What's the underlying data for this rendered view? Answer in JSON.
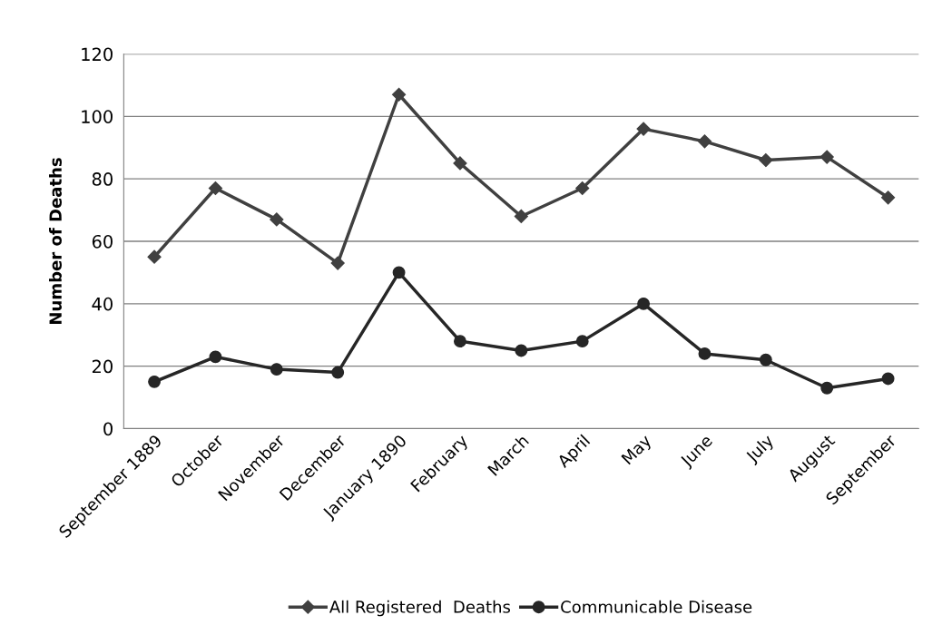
{
  "chart_data": {
    "type": "line",
    "ylabel": "Number of Deaths",
    "categories": [
      "September 1889",
      "October",
      "November",
      "December",
      "January 1890",
      "February",
      "March",
      "April",
      "May",
      "June",
      "July",
      "August",
      "September"
    ],
    "series": [
      {
        "name": "All Registered  Deaths",
        "color": "#404040",
        "marker": "diamond",
        "values": [
          55,
          77,
          67,
          53,
          107,
          85,
          68,
          77,
          96,
          92,
          86,
          87,
          74
        ]
      },
      {
        "name": "Communicable Disease",
        "color": "#262626",
        "marker": "circle",
        "values": [
          15,
          23,
          19,
          18,
          50,
          28,
          25,
          28,
          40,
          24,
          22,
          13,
          16
        ]
      }
    ],
    "ylim": [
      0,
      120
    ],
    "yticks": [
      0,
      20,
      40,
      60,
      80,
      100,
      120
    ],
    "grid": "y",
    "legend": "bottom",
    "line_style": "solid"
  }
}
